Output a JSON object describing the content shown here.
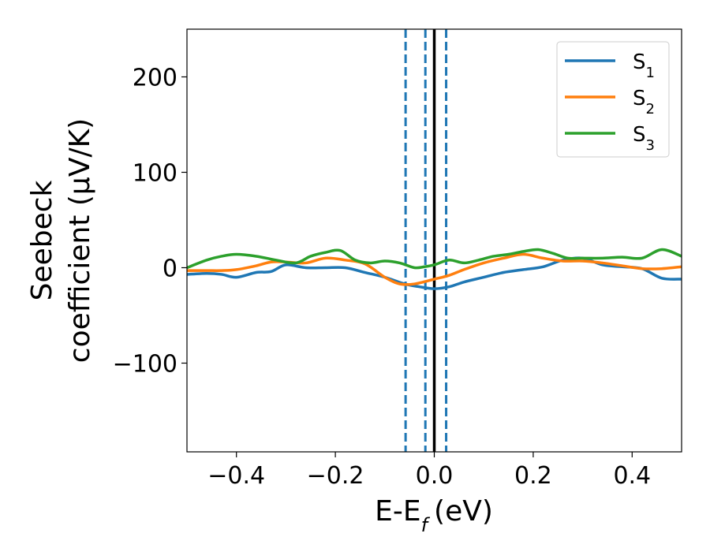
{
  "chart_data": {
    "type": "line",
    "xlabel": "E-E",
    "xlabel_sub": "f",
    "xlabel_unit": "(eV)",
    "ylabel_line1": "Seebeck",
    "ylabel_line2": "coefficient  (μV/K)",
    "xlim": [
      -0.5,
      0.5
    ],
    "ylim": [
      -193,
      250
    ],
    "x_ticks": [
      -0.4,
      -0.2,
      0.0,
      0.2,
      0.4
    ],
    "x_tick_labels": [
      "−0.4",
      "−0.2",
      "0.0",
      "0.2",
      "0.4"
    ],
    "y_ticks": [
      -100,
      0,
      100,
      200
    ],
    "y_tick_labels": [
      "−100",
      "0",
      "100",
      "200"
    ],
    "grid": false,
    "legend_position": "top-right",
    "vlines": [
      {
        "x": 0.0,
        "style": "solid",
        "color": "#000000"
      },
      {
        "x": -0.058,
        "style": "dashed",
        "color": "#1f77b4"
      },
      {
        "x": -0.018,
        "style": "dashed",
        "color": "#1f77b4"
      },
      {
        "x": 0.024,
        "style": "dashed",
        "color": "#1f77b4"
      }
    ],
    "series": [
      {
        "name": "S",
        "sub": "1",
        "color": "#1f77b4",
        "x": [
          -0.5,
          -0.46,
          -0.43,
          -0.4,
          -0.36,
          -0.33,
          -0.3,
          -0.26,
          -0.22,
          -0.18,
          -0.14,
          -0.1,
          -0.06,
          -0.03,
          0.0,
          0.03,
          0.06,
          0.1,
          0.14,
          0.18,
          0.22,
          0.26,
          0.3,
          0.34,
          0.38,
          0.42,
          0.46,
          0.5
        ],
        "y": [
          -7,
          -6,
          -7,
          -10,
          -5,
          -4,
          3,
          0,
          0,
          0,
          -5,
          -10,
          -17,
          -20,
          -22,
          -20,
          -15,
          -10,
          -5,
          -2,
          1,
          8,
          10,
          3,
          1,
          -1,
          -11,
          -12
        ]
      },
      {
        "name": "S",
        "sub": "2",
        "color": "#ff7f0e",
        "x": [
          -0.5,
          -0.46,
          -0.43,
          -0.4,
          -0.36,
          -0.33,
          -0.3,
          -0.26,
          -0.22,
          -0.18,
          -0.14,
          -0.1,
          -0.07,
          -0.04,
          0.0,
          0.03,
          0.06,
          0.1,
          0.14,
          0.18,
          0.22,
          0.26,
          0.3,
          0.34,
          0.38,
          0.42,
          0.46,
          0.5
        ],
        "y": [
          -3,
          -3,
          -3,
          -2,
          2,
          6,
          6,
          5,
          10,
          8,
          4,
          -10,
          -17,
          -17,
          -12,
          -8,
          -2,
          5,
          10,
          14,
          10,
          7,
          7,
          5,
          2,
          -1,
          -1,
          1
        ]
      },
      {
        "name": "S",
        "sub": "3",
        "color": "#2ca02c",
        "x": [
          -0.5,
          -0.46,
          -0.43,
          -0.4,
          -0.36,
          -0.32,
          -0.28,
          -0.25,
          -0.22,
          -0.19,
          -0.16,
          -0.13,
          -0.1,
          -0.07,
          -0.04,
          -0.02,
          0.0,
          0.03,
          0.06,
          0.09,
          0.12,
          0.15,
          0.18,
          0.21,
          0.24,
          0.27,
          0.3,
          0.34,
          0.38,
          0.42,
          0.46,
          0.5
        ],
        "y": [
          0,
          8,
          12,
          14,
          12,
          8,
          5,
          12,
          16,
          18,
          8,
          5,
          7,
          5,
          0,
          1,
          3,
          8,
          5,
          8,
          12,
          14,
          17,
          19,
          15,
          10,
          10,
          10,
          11,
          10,
          19,
          12
        ]
      }
    ]
  }
}
